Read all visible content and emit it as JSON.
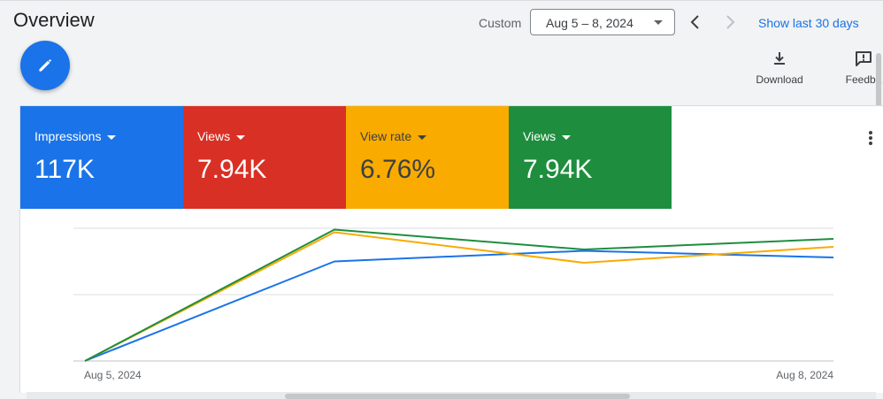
{
  "header": {
    "title": "Overview",
    "custom_label": "Custom",
    "date_range": "Aug 5 – 8, 2024",
    "show_last_label": "Show last 30 days"
  },
  "toolbar": {
    "download_label": "Download",
    "feedback_label": "Feedba"
  },
  "icons": [
    "pencil-icon",
    "chevron-left-icon",
    "chevron-right-icon",
    "download-icon",
    "feedback-icon",
    "more-vert-icon",
    "caret-down-icon"
  ],
  "colors": {
    "impressions": "#1a73e8",
    "views": "#d93025",
    "view_rate": "#f9ab00",
    "views_2": "#1e8e3e",
    "link": "#1a73e8"
  },
  "metrics": [
    {
      "label": "Impressions",
      "value": "117K"
    },
    {
      "label": "Views",
      "value": "7.94K"
    },
    {
      "label": "View rate",
      "value": "6.76%"
    },
    {
      "label": "Views",
      "value": "7.94K"
    }
  ],
  "chart_data": {
    "type": "line",
    "x": [
      "Aug 5, 2024",
      "Aug 6, 2024",
      "Aug 7, 2024",
      "Aug 8, 2024"
    ],
    "x_tick_labels": [
      "Aug 5, 2024",
      "Aug 8, 2024"
    ],
    "grid": true,
    "ylim": [
      0,
      1
    ],
    "series": [
      {
        "color": "#1a73e8",
        "values": [
          0,
          0.75,
          0.83,
          0.78
        ]
      },
      {
        "color": "#f9ab00",
        "values": [
          0,
          0.97,
          0.74,
          0.86
        ]
      },
      {
        "color": "#1e8e3e",
        "values": [
          0,
          0.99,
          0.84,
          0.92
        ]
      }
    ]
  }
}
